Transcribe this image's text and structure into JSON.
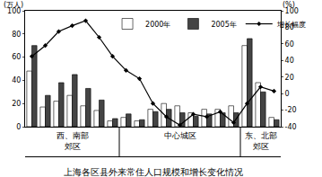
{
  "chart_data": {
    "type": "bar",
    "title": "上海各区县外来常住人口规模和增长变化情况",
    "y_label": "(万人)",
    "y2_label": "(%)",
    "categories": [
      null,
      null,
      null,
      null,
      null,
      null,
      null,
      null,
      null,
      null,
      null,
      null,
      null,
      null,
      null,
      null,
      null,
      null,
      null
    ],
    "groups": [
      {
        "label": [
          "西、南部",
          "郊区"
        ],
        "count": 7
      },
      {
        "label": [
          "中心城区"
        ],
        "count": 9
      },
      {
        "label": [
          "东、北部",
          "郊区"
        ],
        "count": 3
      }
    ],
    "series": [
      {
        "name": "2000年",
        "type": "bar",
        "color": "#ffffff",
        "values": [
          48,
          17,
          22,
          27,
          18,
          14,
          5,
          8,
          5,
          15,
          20,
          18,
          12,
          15,
          15,
          18,
          70,
          38,
          8
        ]
      },
      {
        "name": "2005年",
        "type": "bar",
        "color": "#444444",
        "values": [
          70,
          27,
          38,
          45,
          33,
          23,
          7,
          11,
          6,
          13,
          15,
          12,
          9,
          11,
          12,
          12,
          76,
          30,
          6
        ]
      },
      {
        "name": "增长幅度",
        "type": "line",
        "axis": "y2",
        "color": "#000000",
        "marker": "diamond",
        "values": [
          45,
          58,
          75,
          82,
          88,
          68,
          45,
          28,
          18,
          -12,
          -28,
          -38,
          -25,
          -28,
          -22,
          -35,
          -12,
          8,
          3
        ]
      }
    ],
    "ylim": [
      0,
      100
    ],
    "yticks": [
      0,
      20,
      40,
      60,
      80,
      100
    ],
    "y2lim": [
      -40,
      100
    ],
    "y2ticks": [
      -40,
      -20,
      0,
      20,
      40,
      60,
      80,
      100
    ],
    "legend": "top",
    "grid": false
  }
}
